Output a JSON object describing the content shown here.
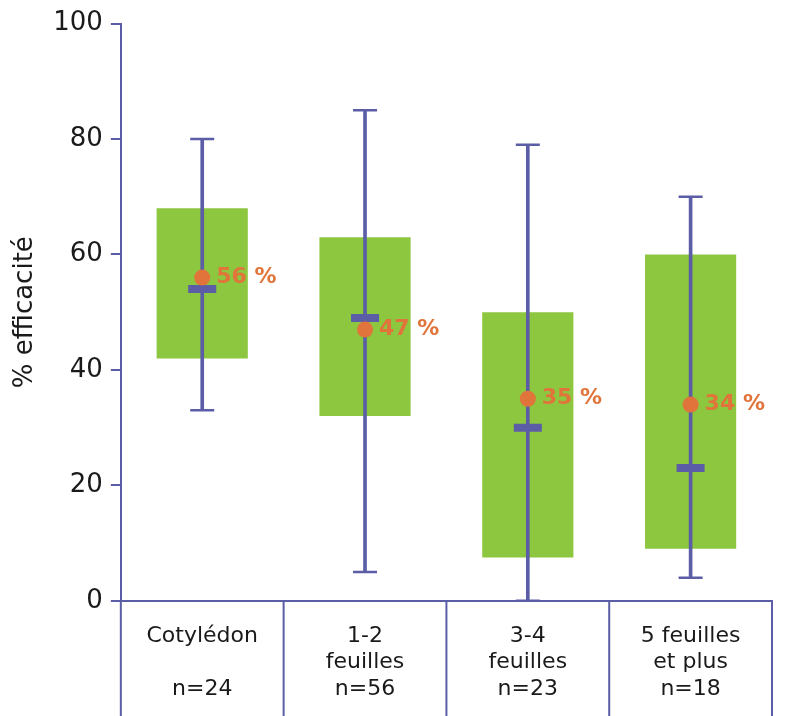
{
  "chart_data": {
    "type": "boxplot",
    "y_label": "% efficacité",
    "categories": [
      "Cotylédon",
      "1-2 feuilles",
      "3-4 feuilles",
      "5 feuilles et plus"
    ],
    "n_labels": [
      "n=24",
      "n=56",
      "n=23",
      "n=18"
    ],
    "ylim": [
      0,
      100
    ],
    "yticks": [
      0,
      20,
      40,
      60,
      80,
      100
    ],
    "grid": false,
    "legend": false,
    "data_labels": true,
    "boxes": {
      "color": "#8dc63f",
      "whisker_color": "#5b5ea6",
      "whisker_low": [
        33,
        5,
        0,
        4
      ],
      "q1": [
        42,
        32,
        7.5,
        9
      ],
      "q3": [
        68,
        63,
        50,
        60
      ],
      "whisker_high": [
        80,
        85,
        79,
        70
      ]
    },
    "median": {
      "color": "#5b5ea6",
      "values": [
        54,
        49,
        30,
        23
      ]
    },
    "mean": {
      "color": "#e0743a",
      "marker": "circle",
      "values": [
        56,
        47,
        35,
        34
      ],
      "value_labels": [
        "56 %",
        "47 %",
        "35 %",
        "34 %"
      ]
    }
  }
}
